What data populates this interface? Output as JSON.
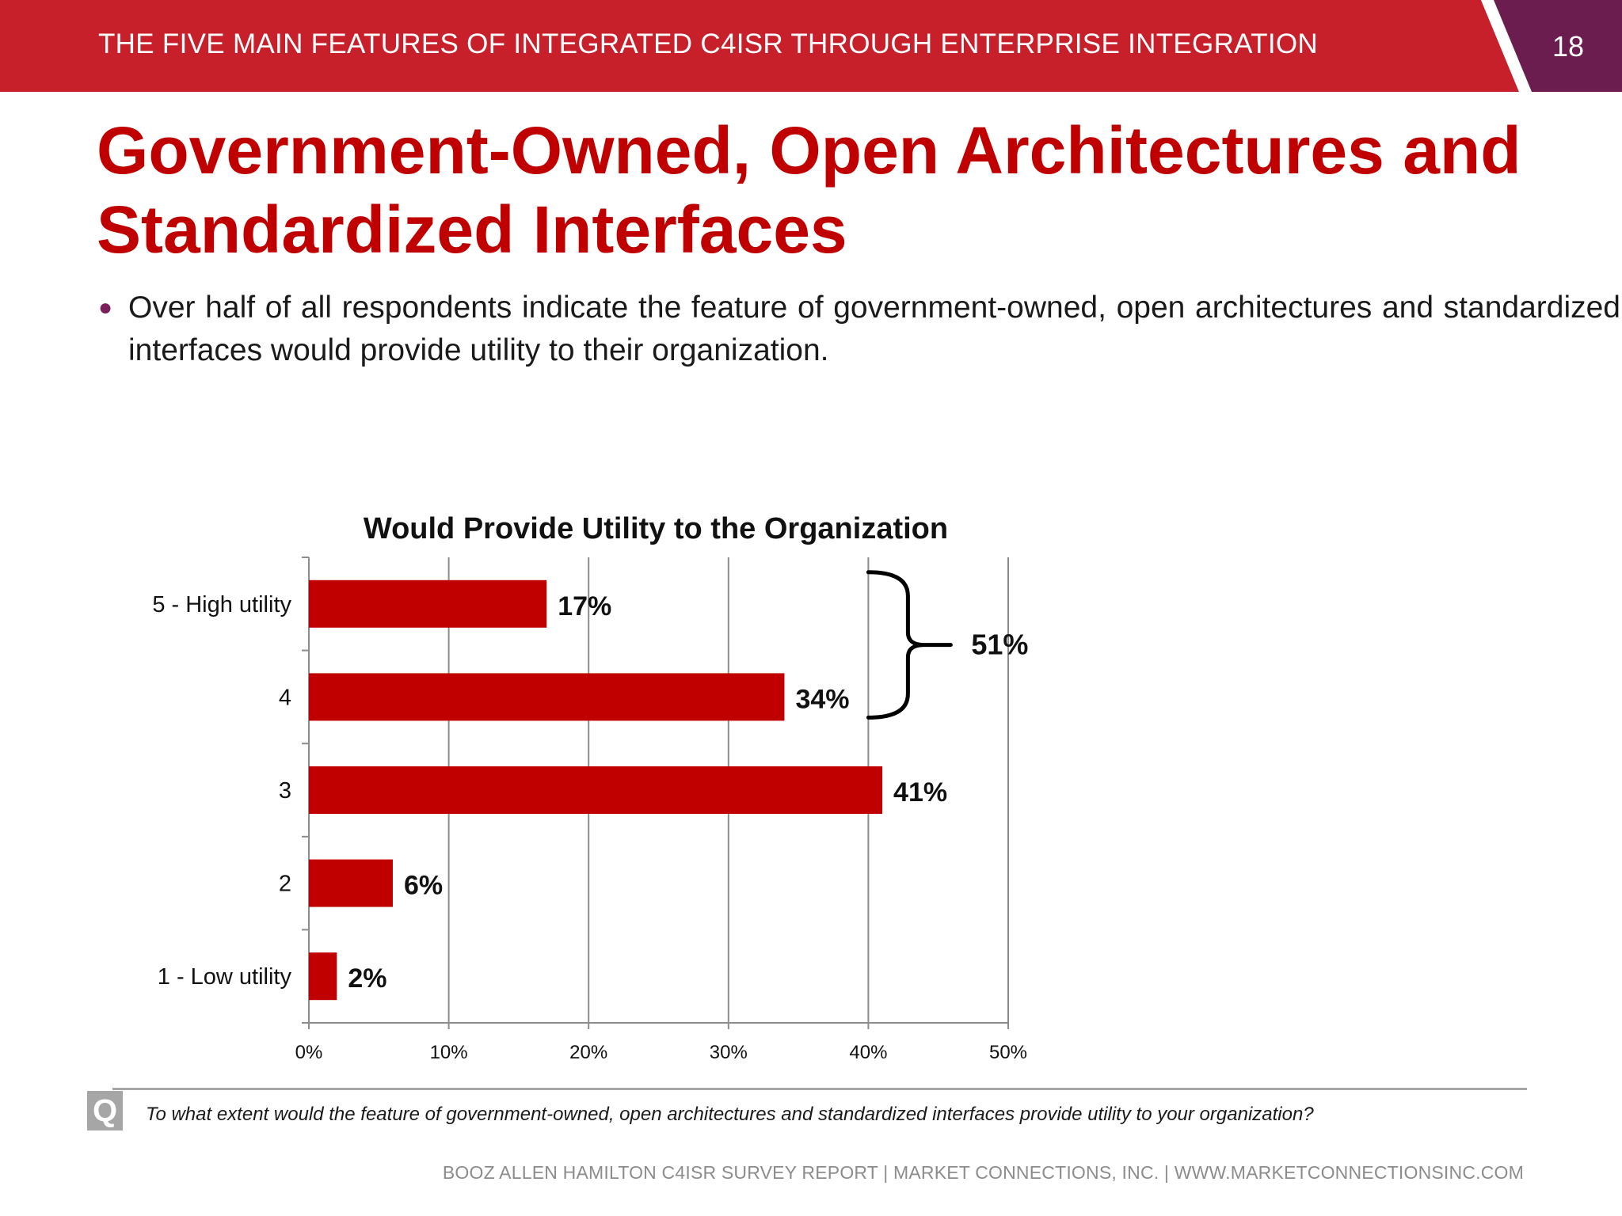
{
  "header": {
    "title": "THE FIVE MAIN FEATURES OF INTEGRATED C4ISR THROUGH ENTERPRISE INTEGRATION",
    "page_number": "18"
  },
  "slide": {
    "title": "Government-Owned, Open Architectures and Standardized Interfaces",
    "bullet": "Over half of all respondents indicate the feature of government-owned, open architectures and standardized interfaces would provide utility to their organization."
  },
  "chart_data": {
    "type": "bar",
    "orientation": "horizontal",
    "title": "Would Provide Utility to the Organization",
    "categories": [
      "5 - High utility",
      "4",
      "3",
      "2",
      "1 - Low utility"
    ],
    "values": [
      17,
      34,
      41,
      6,
      2
    ],
    "value_labels": [
      "17%",
      "34%",
      "41%",
      "6%",
      "2%"
    ],
    "xlim": [
      0,
      50
    ],
    "x_ticks": [
      "0%",
      "10%",
      "20%",
      "30%",
      "40%",
      "50%"
    ],
    "grid": "vertical",
    "bar_color": "#c00000",
    "annotation": {
      "text": "51%",
      "groups": [
        "5 - High utility",
        "4"
      ]
    }
  },
  "question": {
    "icon": "Q",
    "text": "To what extent would the feature of government-owned, open architectures and standardized interfaces provide utility to your organization?"
  },
  "footer": {
    "text": "BOOZ ALLEN HAMILTON C4ISR SURVEY REPORT  |  MARKET CONNECTIONS, INC.  |  WWW.MARKETCONNECTIONSINC.COM"
  },
  "colors": {
    "header_red": "#c8202a",
    "header_purple": "#6b1d4f",
    "title_red": "#c00000"
  }
}
